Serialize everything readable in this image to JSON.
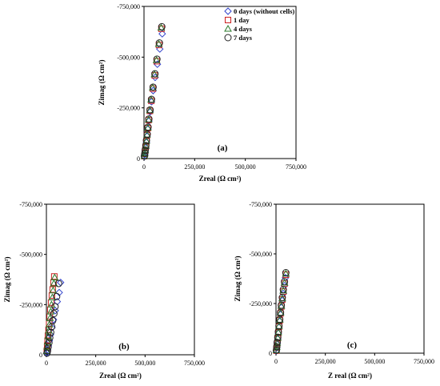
{
  "chart_data": [
    {
      "panel": "(a)",
      "type": "scatter",
      "xlabel": "Zreal (Ω cm²)",
      "ylabel": "Zimag (Ω cm²)",
      "xlim": [
        0,
        750000
      ],
      "ylim": [
        0,
        -750000
      ],
      "xticks": [
        "0",
        "250,000",
        "500,000",
        "750,000"
      ],
      "yticks": [
        "0",
        "-250,000",
        "-500,000",
        "-750,000"
      ],
      "legend": {
        "position": "top-right"
      },
      "series": [
        {
          "name": "0 days (without cells)",
          "marker": "diamond",
          "color": "#3344cc",
          "x": [
            2000,
            4000,
            6000,
            9000,
            12000,
            15000,
            19000,
            24000,
            30000,
            37000,
            45000,
            55000,
            66000,
            78000,
            90000
          ],
          "y": [
            -10000,
            -20000,
            -35000,
            -55000,
            -80000,
            -110000,
            -145000,
            -185000,
            -230000,
            -280000,
            -335000,
            -400000,
            -465000,
            -540000,
            -615000
          ]
        },
        {
          "name": "1 day",
          "marker": "square",
          "color": "#cc2222",
          "x": [
            2000,
            4000,
            6000,
            9000,
            12000,
            15000,
            19000,
            23000,
            29000,
            36000,
            44000,
            53000,
            63000,
            74000,
            86000
          ],
          "y": [
            -12000,
            -24000,
            -40000,
            -60000,
            -85000,
            -115000,
            -150000,
            -190000,
            -235000,
            -285000,
            -345000,
            -410000,
            -480000,
            -560000,
            -640000
          ]
        },
        {
          "name": "4 days",
          "marker": "triangle",
          "color": "#2a7a2a",
          "x": [
            2000,
            4000,
            6000,
            9000,
            12000,
            15000,
            19000,
            23000,
            29000,
            35000,
            43000,
            52000,
            62000,
            73000,
            85000
          ],
          "y": [
            -12000,
            -25000,
            -41000,
            -62000,
            -87000,
            -118000,
            -152000,
            -192000,
            -238000,
            -290000,
            -350000,
            -415000,
            -485000,
            -565000,
            -645000
          ]
        },
        {
          "name": "7 days",
          "marker": "circle",
          "color": "#222222",
          "x": [
            2000,
            4000,
            6000,
            9000,
            12000,
            16000,
            20000,
            24000,
            30000,
            37000,
            45000,
            54000,
            64000,
            76000,
            88000
          ],
          "y": [
            -13000,
            -26000,
            -42000,
            -64000,
            -90000,
            -120000,
            -155000,
            -195000,
            -240000,
            -292000,
            -352000,
            -418000,
            -490000,
            -570000,
            -650000
          ]
        }
      ]
    },
    {
      "panel": "(b)",
      "type": "scatter",
      "xlabel": "Zreal (Ω cm²)",
      "ylabel": "Zimag (Ω cm²)",
      "xlim": [
        0,
        750000
      ],
      "ylim": [
        0,
        -750000
      ],
      "xticks": [
        "0",
        "250,000",
        "500,000",
        "750,000"
      ],
      "yticks": [
        "0",
        "-250,000",
        "-500,000",
        "-750,000"
      ],
      "series": [
        {
          "name": "0 days (without cells)",
          "marker": "diamond",
          "color": "#3344cc",
          "x": [
            3000,
            6000,
            10000,
            15000,
            21000,
            28000,
            36000,
            45000,
            55000,
            65000,
            72000
          ],
          "y": [
            -10000,
            -25000,
            -45000,
            -70000,
            -100000,
            -135000,
            -175000,
            -220000,
            -265000,
            -310000,
            -360000
          ]
        },
        {
          "name": "1 day",
          "marker": "square",
          "color": "#cc2222",
          "x": [
            2000,
            4000,
            6000,
            8000,
            11000,
            14000,
            17000,
            20000,
            24000,
            28000,
            32000,
            36000,
            40000
          ],
          "y": [
            -20000,
            -45000,
            -70000,
            -95000,
            -125000,
            -155000,
            -190000,
            -225000,
            -260000,
            -295000,
            -325000,
            -360000,
            -390000
          ]
        },
        {
          "name": "4 days",
          "marker": "triangle",
          "color": "#2a7a2a",
          "x": [
            2000,
            4000,
            6000,
            9000,
            12000,
            15000,
            18000,
            22000,
            26000,
            30000,
            34000,
            38000,
            42000
          ],
          "y": [
            -18000,
            -40000,
            -65000,
            -92000,
            -120000,
            -150000,
            -182000,
            -215000,
            -250000,
            -285000,
            -320000,
            -355000,
            -385000
          ]
        },
        {
          "name": "7 days",
          "marker": "circle",
          "color": "#222222",
          "x": [
            3000,
            6000,
            9000,
            13000,
            17000,
            22000,
            27000,
            32000,
            38000,
            44000,
            52000,
            62000
          ],
          "y": [
            -8000,
            -20000,
            -38000,
            -60000,
            -85000,
            -112000,
            -140000,
            -170000,
            -205000,
            -240000,
            -290000,
            -355000
          ]
        }
      ]
    },
    {
      "panel": "(c)",
      "type": "scatter",
      "xlabel": "Z real (Ω cm²)",
      "ylabel": "Zimag (Ω cm²)",
      "xlim": [
        0,
        750000
      ],
      "ylim": [
        0,
        -750000
      ],
      "xticks": [
        "0",
        "250,000",
        "500,000",
        "750,000"
      ],
      "yticks": [
        "0",
        "-250,000",
        "-500,000",
        "-750,000"
      ],
      "series": [
        {
          "name": "0 days (without cells)",
          "marker": "diamond",
          "color": "#3344cc",
          "x": [
            2000,
            4000,
            6000,
            9000,
            12000,
            15000,
            19000,
            23000,
            27000,
            32000,
            37000,
            43000,
            48000
          ],
          "y": [
            -12000,
            -28000,
            -48000,
            -72000,
            -100000,
            -130000,
            -160000,
            -195000,
            -230000,
            -265000,
            -300000,
            -340000,
            -380000
          ]
        },
        {
          "name": "1 day",
          "marker": "square",
          "color": "#cc2222",
          "x": [
            2000,
            4000,
            6000,
            9000,
            12000,
            15000,
            19000,
            23000,
            27000,
            32000,
            37000,
            43000,
            50000
          ],
          "y": [
            -13000,
            -30000,
            -50000,
            -75000,
            -103000,
            -133000,
            -165000,
            -200000,
            -235000,
            -270000,
            -310000,
            -350000,
            -395000
          ]
        },
        {
          "name": "4 days",
          "marker": "triangle",
          "color": "#2a7a2a",
          "x": [
            2000,
            4000,
            6000,
            9000,
            12000,
            15000,
            19000,
            23000,
            27000,
            32000,
            37000,
            43000,
            50000
          ],
          "y": [
            -14000,
            -31000,
            -52000,
            -77000,
            -105000,
            -136000,
            -168000,
            -203000,
            -238000,
            -275000,
            -315000,
            -355000,
            -400000
          ]
        },
        {
          "name": "7 days",
          "marker": "circle",
          "color": "#222222",
          "x": [
            2000,
            4000,
            6000,
            9000,
            12000,
            15000,
            19000,
            23000,
            27000,
            32000,
            37000,
            43000,
            50000
          ],
          "y": [
            -15000,
            -32000,
            -54000,
            -80000,
            -108000,
            -138000,
            -170000,
            -205000,
            -242000,
            -280000,
            -320000,
            -360000,
            -405000
          ]
        }
      ]
    }
  ]
}
